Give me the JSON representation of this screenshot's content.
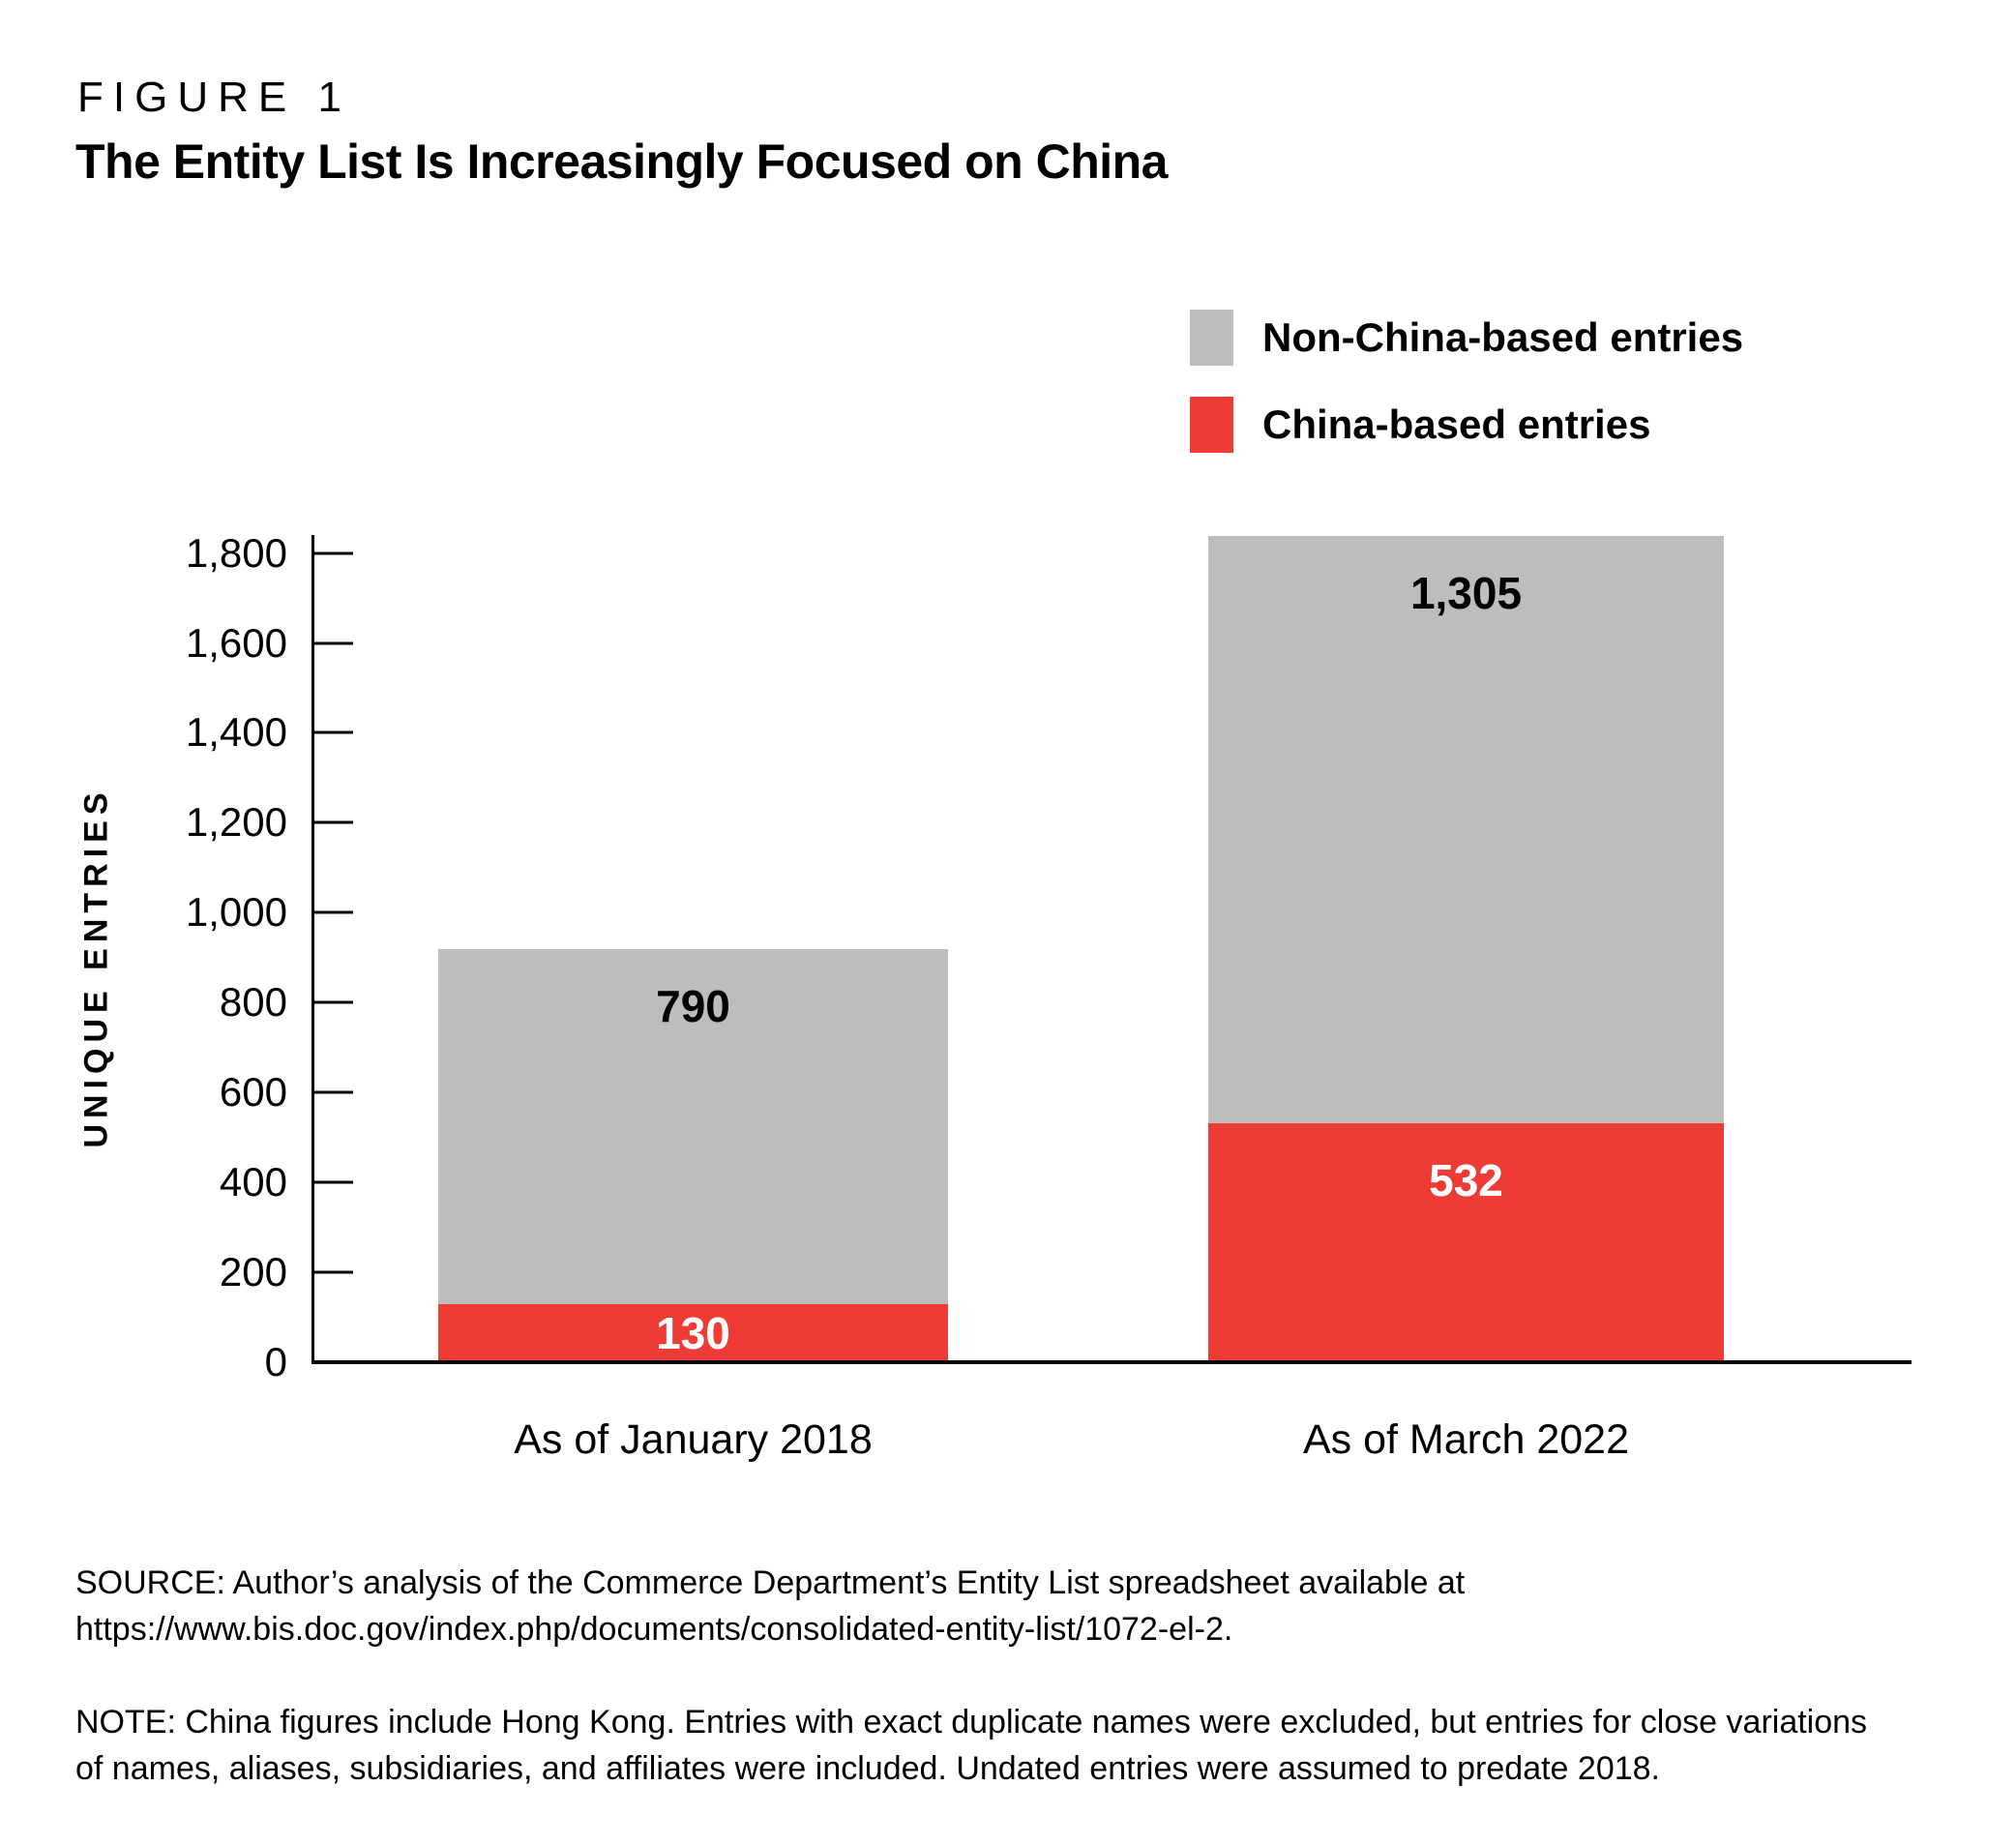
{
  "figure_label": "FIGURE 1",
  "chart_data": {
    "type": "bar",
    "stacked": true,
    "title": "The Entity List Is Increasingly Focused on China",
    "categories": [
      "As of January 2018",
      "As of March 2022"
    ],
    "series": [
      {
        "key": "china",
        "name": "China-based entries",
        "color": "#ee3b35",
        "label_color": "#ffffff",
        "values": [
          130,
          532
        ],
        "value_labels": [
          "130",
          "532"
        ]
      },
      {
        "key": "non-china",
        "name": "Non-China-based entries",
        "color": "#bcbdbf",
        "label_color": "#000000",
        "values": [
          790,
          1305
        ],
        "value_labels": [
          "790",
          "1,305"
        ]
      }
    ],
    "legend": [
      "Non-China-based entries",
      "China-based entries"
    ],
    "legend_position": "top-right",
    "ylabel": "UNIQUE ENTRIES",
    "ylim": [
      0,
      1840
    ],
    "y_ticks": [
      0,
      200,
      400,
      600,
      800,
      1000,
      1200,
      1400,
      1600,
      1800
    ],
    "y_tick_labels": [
      "0",
      "200",
      "400",
      "600",
      "800",
      "1,000",
      "1,200",
      "1,400",
      "1,600",
      "1,800"
    ],
    "grid": false
  },
  "source": {
    "line1": "SOURCE: Author’s analysis of the Commerce Department’s Entity List spreadsheet available at",
    "line2": "https://www.bis.doc.gov/index.php/documents/consolidated-entity-list/1072-el-2."
  },
  "note": {
    "line1": "NOTE: China figures include Hong Kong. Entries with exact duplicate names were excluded, but entries for close variations",
    "line2": "of names, aliases, subsidiaries, and affiliates were included. Undated entries were assumed to predate 2018."
  }
}
